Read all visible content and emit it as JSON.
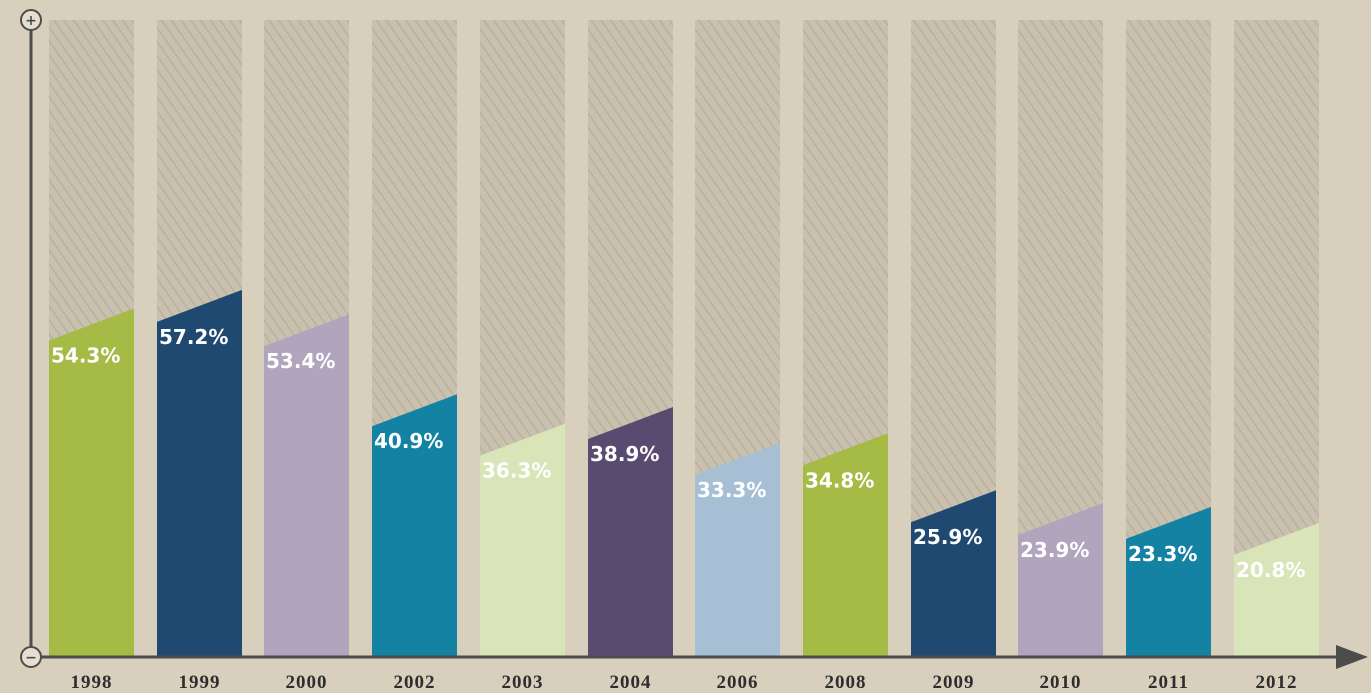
{
  "chart_data": {
    "type": "bar",
    "title": "",
    "xlabel": "",
    "ylabel": "",
    "ylim": [
      0,
      100
    ],
    "grid": false,
    "axis_markers": {
      "top": "+",
      "bottom": "−"
    },
    "categories": [
      "1998",
      "1999",
      "2000",
      "2002",
      "2003",
      "2004",
      "2006",
      "2008",
      "2009",
      "2010",
      "2011",
      "2012"
    ],
    "values": [
      54.3,
      57.2,
      53.4,
      40.9,
      36.3,
      38.9,
      33.3,
      34.8,
      25.9,
      23.9,
      23.3,
      20.8
    ],
    "value_labels": [
      "54.3%",
      "57.2%",
      "53.4%",
      "40.9%",
      "36.3%",
      "38.9%",
      "33.3%",
      "34.8%",
      "25.9%",
      "23.9%",
      "23.3%",
      "20.8%"
    ],
    "bar_colors": [
      "#a5bb45",
      "#1f4971",
      "#b0a5bd",
      "#1482a2",
      "#d9e4b9",
      "#584b6f",
      "#a6bfd4",
      "#a5bb45",
      "#1f4971",
      "#b0a5bd",
      "#1482a2",
      "#d9e4b9"
    ],
    "label_colors": [
      "#ffffff",
      "#ffffff",
      "#ffffff",
      "#ffffff",
      "#ffffff",
      "#ffffff",
      "#ffffff",
      "#ffffff",
      "#ffffff",
      "#ffffff",
      "#ffffff",
      "#ffffff"
    ],
    "colors": {
      "background": "#d8d0bd",
      "track": "#c9c1ae",
      "hatch": "#b8b0a0",
      "axis": "#4c4c4c",
      "tick_text": "#2e2e2e"
    }
  }
}
